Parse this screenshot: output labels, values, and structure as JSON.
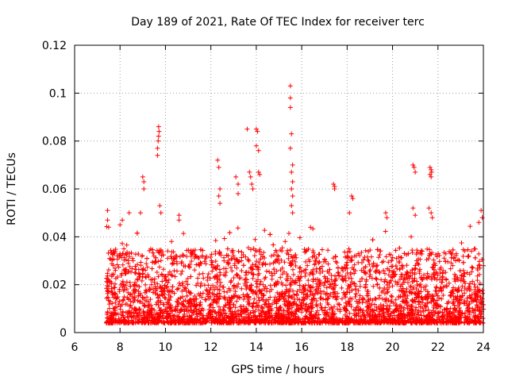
{
  "chart_data": {
    "type": "scatter",
    "title": "Day 189 of 2021, Rate Of TEC Index for receiver terc",
    "xlabel": "GPS time / hours",
    "ylabel": "ROTI / TECUs",
    "xlim": [
      6,
      24
    ],
    "ylim": [
      0,
      0.12
    ],
    "xticks": [
      6,
      8,
      10,
      12,
      14,
      16,
      18,
      20,
      22,
      24
    ],
    "xtick_labels": [
      "6",
      "8",
      "10",
      "12",
      "14",
      "16",
      "18",
      "20",
      "22",
      "24"
    ],
    "yticks": [
      0,
      0.02,
      0.04,
      0.06,
      0.08,
      0.1,
      0.12
    ],
    "ytick_labels": [
      "0",
      "0.02",
      "0.04",
      "0.06",
      "0.08",
      "0.1",
      "0.12"
    ],
    "grid": true,
    "marker": "plus",
    "color": "#ff0000",
    "series": [
      {
        "name": "ROTI",
        "bulk_range_hours": [
          7.4,
          24.0
        ],
        "bulk_typical_range": [
          0.004,
          0.035
        ],
        "points": [
          [
            7.45,
            0.051
          ],
          [
            7.45,
            0.047
          ],
          [
            7.5,
            0.044
          ],
          [
            8.0,
            0.045
          ],
          [
            8.1,
            0.047
          ],
          [
            8.4,
            0.05
          ],
          [
            8.9,
            0.05
          ],
          [
            9.0,
            0.065
          ],
          [
            9.05,
            0.063
          ],
          [
            9.05,
            0.06
          ],
          [
            9.7,
            0.086
          ],
          [
            9.72,
            0.084
          ],
          [
            9.7,
            0.082
          ],
          [
            9.68,
            0.08
          ],
          [
            9.65,
            0.077
          ],
          [
            9.65,
            0.074
          ],
          [
            9.75,
            0.053
          ],
          [
            9.8,
            0.05
          ],
          [
            10.6,
            0.049
          ],
          [
            10.6,
            0.047
          ],
          [
            12.3,
            0.072
          ],
          [
            12.35,
            0.069
          ],
          [
            12.4,
            0.06
          ],
          [
            12.35,
            0.057
          ],
          [
            12.4,
            0.054
          ],
          [
            13.1,
            0.065
          ],
          [
            13.2,
            0.062
          ],
          [
            13.2,
            0.058
          ],
          [
            13.6,
            0.085
          ],
          [
            13.7,
            0.067
          ],
          [
            13.75,
            0.065
          ],
          [
            13.8,
            0.062
          ],
          [
            13.85,
            0.06
          ],
          [
            14.0,
            0.085
          ],
          [
            14.05,
            0.084
          ],
          [
            14.0,
            0.078
          ],
          [
            14.1,
            0.076
          ],
          [
            14.1,
            0.067
          ],
          [
            14.15,
            0.066
          ],
          [
            15.5,
            0.103
          ],
          [
            15.5,
            0.098
          ],
          [
            15.5,
            0.094
          ],
          [
            15.55,
            0.083
          ],
          [
            15.5,
            0.077
          ],
          [
            15.6,
            0.07
          ],
          [
            15.55,
            0.067
          ],
          [
            15.6,
            0.063
          ],
          [
            15.55,
            0.06
          ],
          [
            15.6,
            0.057
          ],
          [
            15.55,
            0.053
          ],
          [
            15.6,
            0.05
          ],
          [
            17.4,
            0.062
          ],
          [
            17.45,
            0.061
          ],
          [
            17.45,
            0.06
          ],
          [
            18.2,
            0.057
          ],
          [
            18.25,
            0.056
          ],
          [
            18.1,
            0.05
          ],
          [
            19.7,
            0.05
          ],
          [
            19.75,
            0.048
          ],
          [
            20.9,
            0.07
          ],
          [
            20.95,
            0.069
          ],
          [
            21.0,
            0.067
          ],
          [
            20.9,
            0.052
          ],
          [
            21.0,
            0.049
          ],
          [
            21.65,
            0.069
          ],
          [
            21.7,
            0.068
          ],
          [
            21.72,
            0.067
          ],
          [
            21.65,
            0.066
          ],
          [
            21.7,
            0.065
          ],
          [
            21.6,
            0.052
          ],
          [
            21.7,
            0.05
          ],
          [
            21.75,
            0.048
          ],
          [
            23.9,
            0.051
          ],
          [
            23.95,
            0.048
          ],
          [
            23.8,
            0.046
          ]
        ]
      }
    ]
  }
}
